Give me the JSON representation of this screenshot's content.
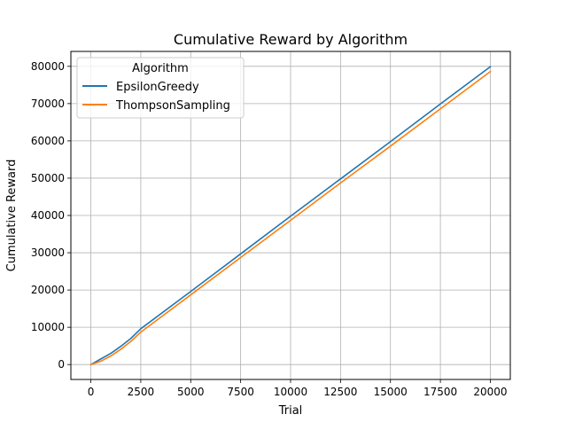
{
  "colors": {
    "EpsilonGreedy": "#1f77b4",
    "ThompsonSampling": "#ff7f0e",
    "grid": "#b0b0b0",
    "axes": "#000000"
  },
  "chart_data": {
    "type": "line",
    "title": "Cumulative Reward by Algorithm",
    "xlabel": "Trial",
    "ylabel": "Cumulative Reward",
    "xlim": [
      -1000,
      21000
    ],
    "ylim": [
      -4000,
      84000
    ],
    "grid": true,
    "legend": {
      "title": "Algorithm",
      "position": "top-left"
    },
    "x_ticks": [
      0,
      2500,
      5000,
      7500,
      10000,
      12500,
      15000,
      17500,
      20000
    ],
    "x_tick_labels": [
      "0",
      "2500",
      "5000",
      "7500",
      "10000",
      "12500",
      "15000",
      "17500",
      "20000"
    ],
    "y_ticks": [
      0,
      10000,
      20000,
      30000,
      40000,
      50000,
      60000,
      70000,
      80000
    ],
    "y_tick_labels": [
      "0",
      "10000",
      "20000",
      "30000",
      "40000",
      "50000",
      "60000",
      "70000",
      "80000"
    ],
    "x": [
      0,
      500,
      1000,
      1500,
      2000,
      2500,
      5000,
      7500,
      10000,
      12500,
      15000,
      17500,
      20000
    ],
    "series": [
      {
        "name": "EpsilonGreedy",
        "values": [
          0,
          1500,
          3000,
          4900,
          7000,
          9600,
          19600,
          29700,
          39800,
          49800,
          59800,
          69900,
          79900
        ]
      },
      {
        "name": "ThompsonSampling",
        "values": [
          0,
          900,
          2300,
          4100,
          6200,
          8700,
          18700,
          28700,
          38700,
          48700,
          58600,
          68600,
          78600
        ]
      }
    ]
  }
}
